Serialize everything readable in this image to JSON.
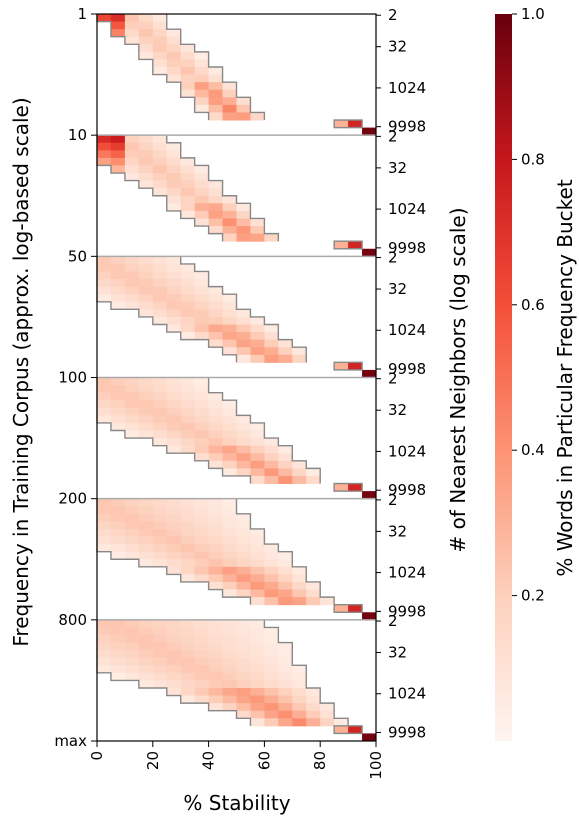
{
  "chart_data": {
    "type": "heatmap",
    "xlabel": "% Stability",
    "ylabel_left": "Frequency in Training Corpus (approx. log-based scale)",
    "ylabel_right": "# of Nearest Neighbors (log scale)",
    "colorbar_label": "% Words in Particular Frequency Bucket",
    "x_ticks": [
      "0",
      "20",
      "40",
      "60",
      "80",
      "100"
    ],
    "xlim": [
      0,
      100
    ],
    "frequency_buckets": [
      "1",
      "10",
      "50",
      "100",
      "200",
      "800",
      "max"
    ],
    "neighbor_ticks": [
      "2",
      "32",
      "1024",
      "9998"
    ],
    "colorbar_ticks": [
      "0.2",
      "0.4",
      "0.6",
      "0.8",
      "1.0"
    ],
    "colorbar_range": [
      0,
      1.0
    ],
    "colormap": [
      "#fff5f0",
      "#fdd0bc",
      "#fc9373",
      "#f44f39",
      "#c5171c",
      "#67000d"
    ],
    "panel_divider_color": "#aaaaaa",
    "grid": false
  }
}
